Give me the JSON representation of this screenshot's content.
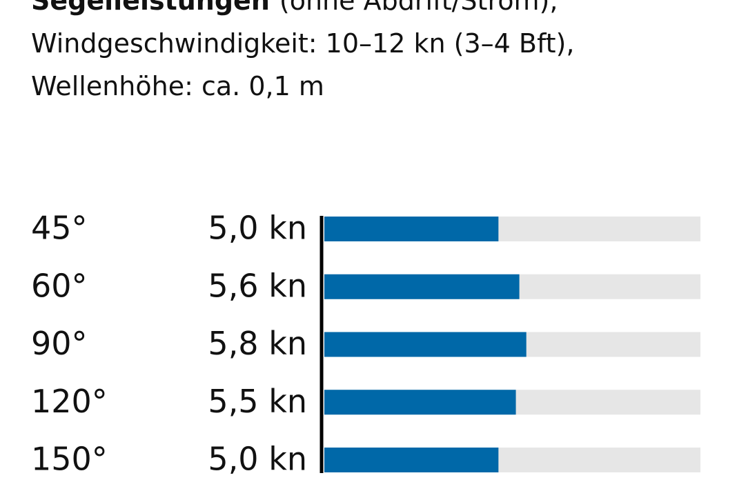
{
  "chart_data": {
    "type": "bar",
    "orientation": "horizontal",
    "title": "Segelleistungen",
    "subtitle_lines": [
      "(ohne Abdrift/Strom),",
      "Windgeschwindigkeit: 10–12 kn (3–4 Bft),",
      "Wellenhöhe: ca. 0,1 m"
    ],
    "categories": [
      "45°",
      "60°",
      "90°",
      "120°",
      "150°"
    ],
    "values": [
      5.0,
      5.6,
      5.8,
      5.5,
      5.0
    ],
    "value_labels": [
      "5,0 kn",
      "5,6 kn",
      "5,8 kn",
      "5,5 kn",
      "5,0 kn"
    ],
    "xlim": [
      0,
      10.8
    ],
    "color": "#0068a8",
    "track_color": "#e6e6e6"
  }
}
